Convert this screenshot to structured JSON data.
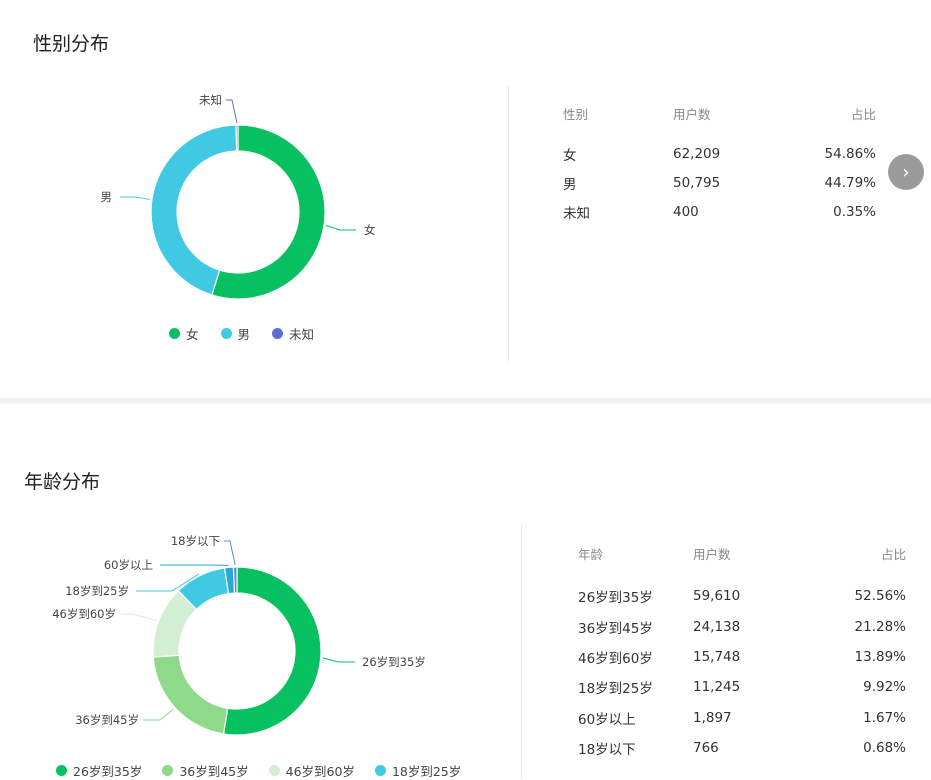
{
  "gender": {
    "title": "性别分布",
    "table_headers": [
      "性别",
      "用户数",
      "占比"
    ],
    "rows": [
      {
        "label": "女",
        "count": "62,209",
        "pct": "54.86%"
      },
      {
        "label": "男",
        "count": "50,795",
        "pct": "44.79%"
      },
      {
        "label": "未知",
        "count": "400",
        "pct": "0.35%"
      }
    ],
    "legend": [
      "女",
      "男",
      "未知"
    ],
    "colors": [
      "#07c160",
      "#40c9e2",
      "#5b6fd0"
    ]
  },
  "age": {
    "title": "年龄分布",
    "table_headers": [
      "年龄",
      "用户数",
      "占比"
    ],
    "rows": [
      {
        "label": "26岁到35岁",
        "count": "59,610",
        "pct": "52.56%"
      },
      {
        "label": "36岁到45岁",
        "count": "24,138",
        "pct": "21.28%"
      },
      {
        "label": "46岁到60岁",
        "count": "15,748",
        "pct": "13.89%"
      },
      {
        "label": "18岁到25岁",
        "count": "11,245",
        "pct": "9.92%"
      },
      {
        "label": "60岁以上",
        "count": "1,897",
        "pct": "1.67%"
      },
      {
        "label": "18岁以下",
        "count": "766",
        "pct": "0.68%"
      }
    ],
    "legend": [
      "26岁到35岁",
      "36岁到45岁",
      "46岁到60岁",
      "18岁到25岁"
    ],
    "colors": [
      "#07c160",
      "#8fd98a",
      "#d3efd3",
      "#40c9e2",
      "#2aa6d8",
      "#5b8ad8"
    ]
  },
  "nav": {
    "next_icon": "chevron-right-icon",
    "next_glyph": "›"
  },
  "chart_data": [
    {
      "type": "pie",
      "title": "性别分布",
      "categories": [
        "女",
        "男",
        "未知"
      ],
      "values": [
        54.86,
        44.79,
        0.35
      ],
      "counts": [
        62209,
        50795,
        400
      ],
      "legend": "bottom"
    },
    {
      "type": "pie",
      "title": "年龄分布",
      "categories": [
        "26岁到35岁",
        "36岁到45岁",
        "46岁到60岁",
        "18岁到25岁",
        "60岁以上",
        "18岁以下"
      ],
      "values": [
        52.56,
        21.28,
        13.89,
        9.92,
        1.67,
        0.68
      ],
      "counts": [
        59610,
        24138,
        15748,
        11245,
        1897,
        766
      ],
      "legend": "bottom"
    }
  ]
}
